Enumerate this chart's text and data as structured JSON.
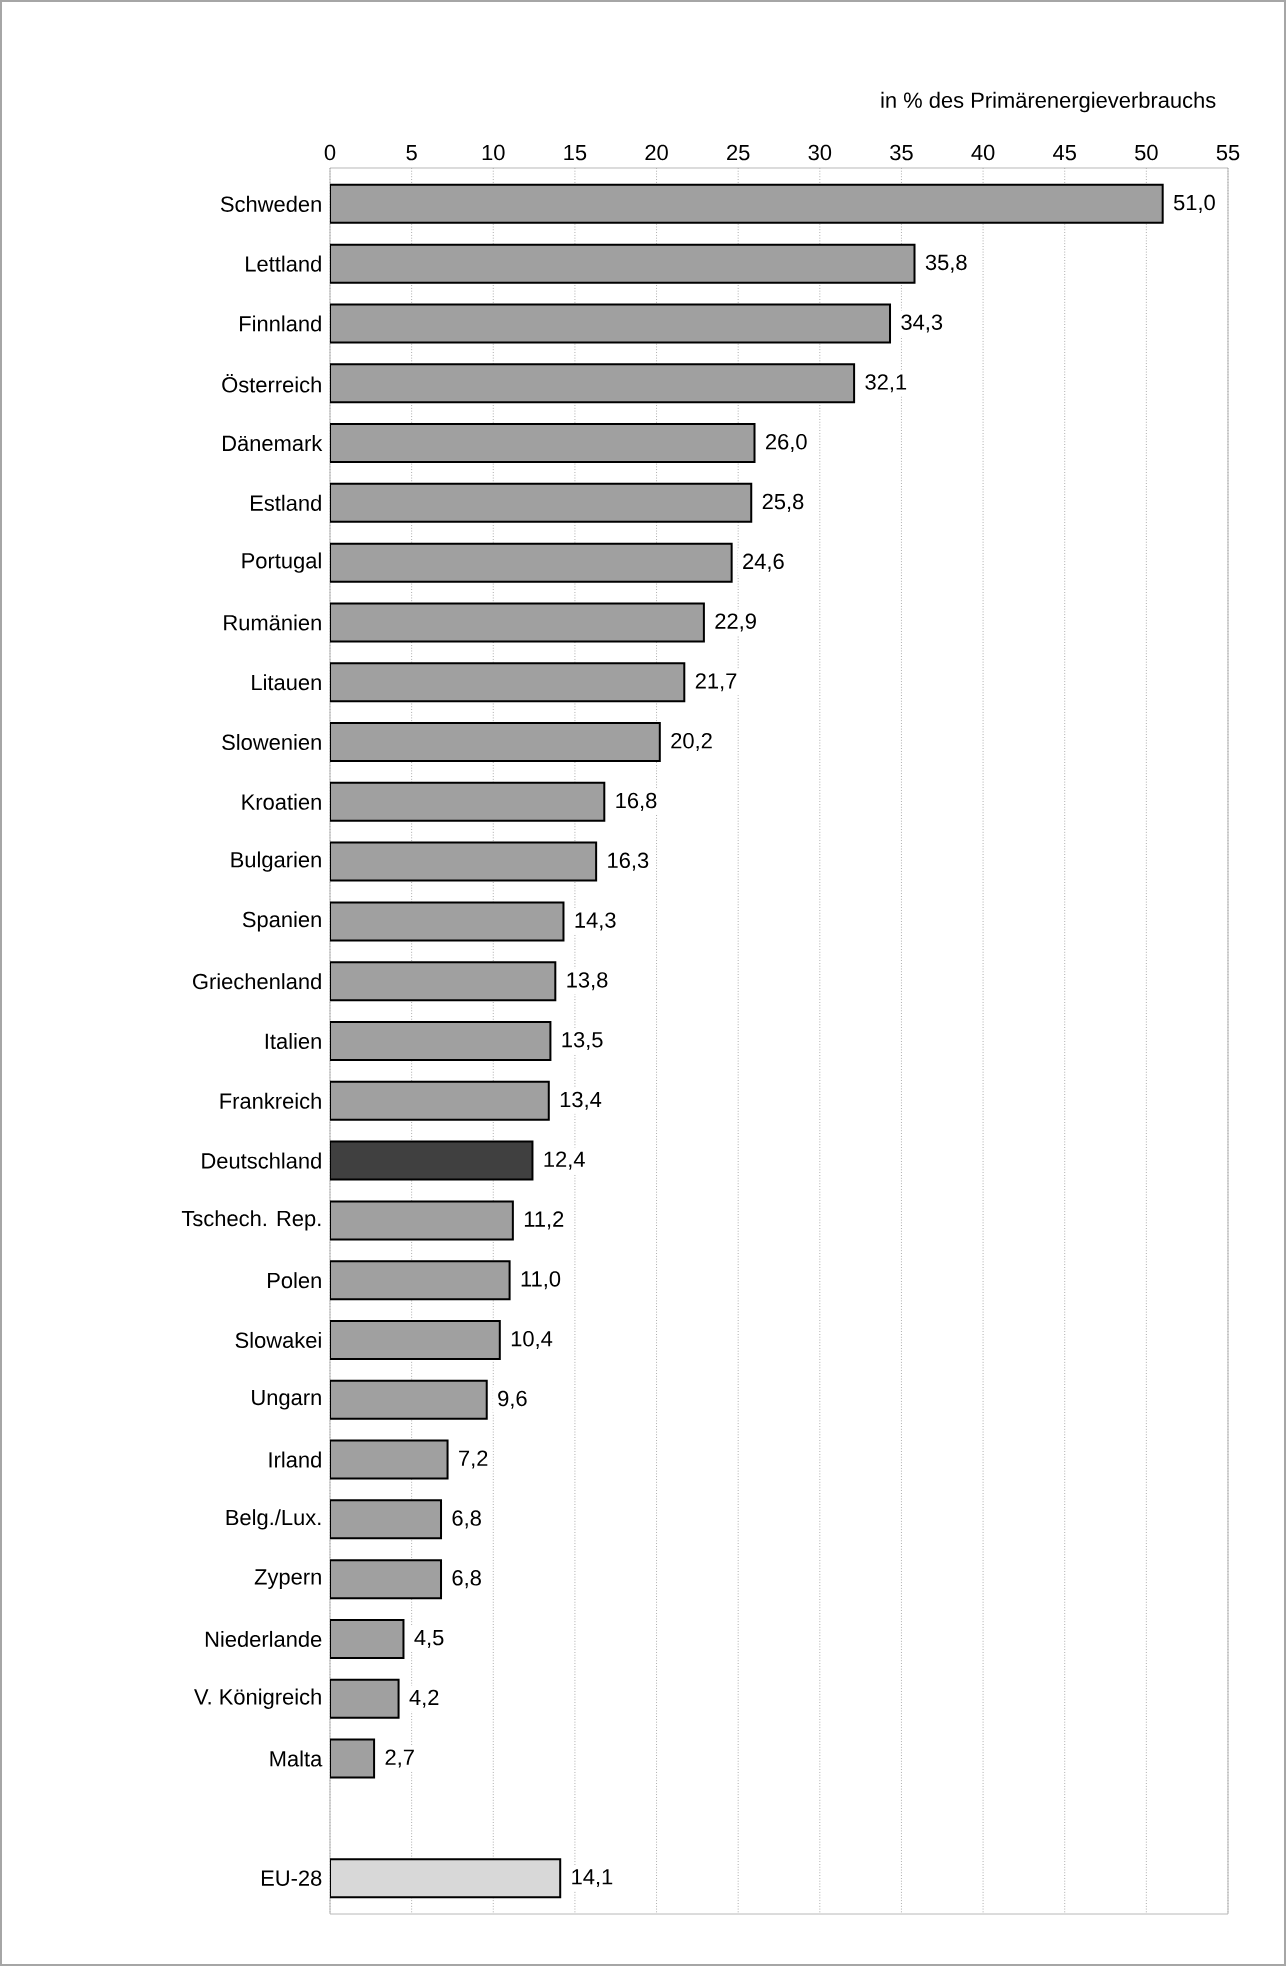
{
  "chart_data": {
    "type": "bar",
    "orientation": "horizontal",
    "xlabel": "in % des Primärenergieverbrauchs",
    "categories": [
      "Schweden",
      "Lettland",
      "Finnland",
      "Österreich",
      "Dänemark",
      "Estland",
      "Portugal",
      "Rumänien",
      "Litauen",
      "Slowenien",
      "Kroatien",
      "Bulgarien",
      "Spanien",
      "Griechenland",
      "Italien",
      "Frankreich",
      "Deutschland",
      "Tschech. Rep.",
      "Polen",
      "Slowakei",
      "Ungarn",
      "Irland",
      "Belg./Lux.",
      "Zypern",
      "Niederlande",
      "V. Königreich",
      "Malta",
      null,
      "EU-28"
    ],
    "values": [
      51.0,
      35.8,
      34.3,
      32.1,
      26.0,
      25.8,
      24.6,
      22.9,
      21.7,
      20.2,
      16.8,
      16.3,
      14.3,
      13.8,
      13.5,
      13.4,
      12.4,
      11.2,
      11.0,
      10.4,
      9.6,
      7.2,
      6.8,
      6.8,
      4.5,
      4.2,
      2.7,
      null,
      14.1
    ],
    "value_labels": [
      "51,0",
      "35,8",
      "34,3",
      "32,1",
      "26,0",
      "25,8",
      "24,6",
      "22,9",
      "21,7",
      "20,2",
      "16,8",
      "16,3",
      "14,3",
      "13,8",
      "13,5",
      "13,4",
      "12,4",
      "11,2",
      "11,0",
      "10,4",
      "9,6",
      "7,2",
      "6,8",
      "6,8",
      "4,5",
      "4,2",
      "2,7",
      null,
      "14,1"
    ],
    "colors": [
      "#a0a0a0",
      "#a0a0a0",
      "#a0a0a0",
      "#a0a0a0",
      "#a0a0a0",
      "#a0a0a0",
      "#a0a0a0",
      "#a0a0a0",
      "#a0a0a0",
      "#a0a0a0",
      "#a0a0a0",
      "#a0a0a0",
      "#a0a0a0",
      "#a0a0a0",
      "#a0a0a0",
      "#a0a0a0",
      "#404040",
      "#a0a0a0",
      "#a0a0a0",
      "#a0a0a0",
      "#a0a0a0",
      "#a0a0a0",
      "#a0a0a0",
      "#a0a0a0",
      "#a0a0a0",
      "#a0a0a0",
      "#a0a0a0",
      null,
      "#d8d8d8"
    ],
    "xlim": [
      0,
      55
    ],
    "xticks": [
      0,
      5,
      10,
      15,
      20,
      25,
      30,
      35,
      40,
      45,
      50,
      55
    ],
    "grid": "x"
  }
}
